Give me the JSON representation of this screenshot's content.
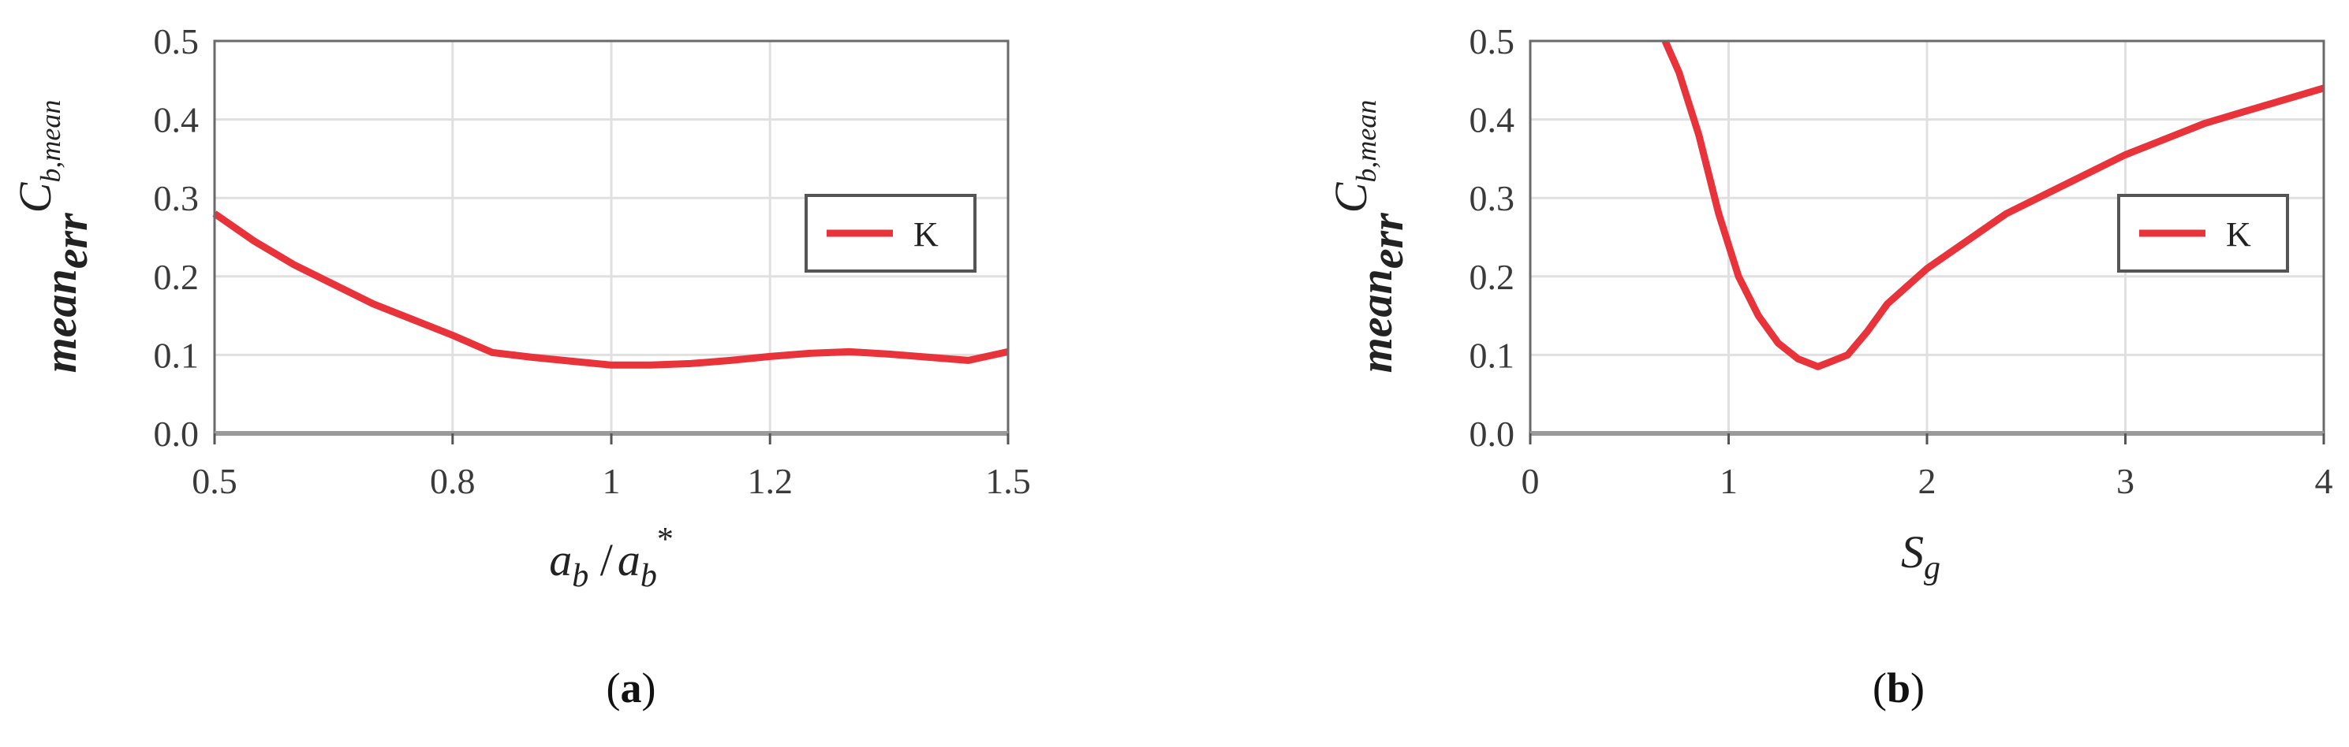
{
  "colors": {
    "series": "#e8333a",
    "grid": "#e0e0e0",
    "frame": "#555555",
    "text": "#3a3a3a"
  },
  "chart_data": [
    {
      "type": "line",
      "panel": "(a)",
      "panel_letter": "a",
      "xlabel": "a_b / a_b*",
      "xlabel_parts": {
        "main": "a",
        "sub": "b",
        "sep": " /",
        "main2": "a",
        "sub2": "b",
        "sup2": "*"
      },
      "ylabel_parts": {
        "main": "mean",
        "sub": "err",
        "sup": "C",
        "supsub": "b,mean"
      },
      "xlim": [
        0.5,
        1.5
      ],
      "ylim": [
        0.0,
        0.5
      ],
      "xticks": [
        0.5,
        0.8,
        1,
        1.2,
        1.5
      ],
      "xtick_labels": [
        "0.5",
        "0.8",
        "1",
        "1.2",
        "1.5"
      ],
      "yticks": [
        0.0,
        0.1,
        0.2,
        0.3,
        0.4,
        0.5
      ],
      "ytick_labels": [
        "0.0",
        "0.1",
        "0.2",
        "0.3",
        "0.4",
        "0.5"
      ],
      "grid": true,
      "legend_position": "right",
      "series": [
        {
          "name": "K",
          "x": [
            0.5,
            0.55,
            0.6,
            0.65,
            0.7,
            0.75,
            0.8,
            0.85,
            0.9,
            0.95,
            1.0,
            1.05,
            1.1,
            1.15,
            1.2,
            1.25,
            1.3,
            1.35,
            1.4,
            1.45,
            1.5
          ],
          "y": [
            0.28,
            0.245,
            0.215,
            0.19,
            0.165,
            0.145,
            0.125,
            0.103,
            0.097,
            0.092,
            0.087,
            0.087,
            0.089,
            0.093,
            0.098,
            0.102,
            0.104,
            0.101,
            0.097,
            0.093,
            0.104
          ]
        }
      ]
    },
    {
      "type": "line",
      "panel": "(b)",
      "panel_letter": "b",
      "xlabel": "S_g",
      "xlabel_parts": {
        "main": "S",
        "sub": "g"
      },
      "ylabel_parts": {
        "main": "mean",
        "sub": "err",
        "sup": "C",
        "supsub": "b,mean"
      },
      "xlim": [
        0,
        4
      ],
      "ylim": [
        0.0,
        0.5
      ],
      "xticks": [
        0,
        1,
        2,
        3,
        4
      ],
      "xtick_labels": [
        "0",
        "1",
        "2",
        "3",
        "4"
      ],
      "yticks": [
        0.0,
        0.1,
        0.2,
        0.3,
        0.4,
        0.5
      ],
      "ytick_labels": [
        "0.0",
        "0.1",
        "0.2",
        "0.3",
        "0.4",
        "0.5"
      ],
      "grid": true,
      "legend_position": "right",
      "series": [
        {
          "name": "K",
          "x": [
            0.68,
            0.75,
            0.85,
            0.95,
            1.05,
            1.15,
            1.25,
            1.35,
            1.45,
            1.5,
            1.6,
            1.7,
            1.8,
            2.0,
            2.2,
            2.4,
            2.6,
            2.8,
            3.0,
            3.2,
            3.4,
            3.6,
            3.8,
            4.0
          ],
          "y": [
            0.5,
            0.46,
            0.38,
            0.28,
            0.2,
            0.15,
            0.115,
            0.095,
            0.085,
            0.09,
            0.1,
            0.13,
            0.165,
            0.21,
            0.245,
            0.28,
            0.305,
            0.33,
            0.355,
            0.375,
            0.395,
            0.41,
            0.425,
            0.44
          ]
        }
      ]
    }
  ]
}
